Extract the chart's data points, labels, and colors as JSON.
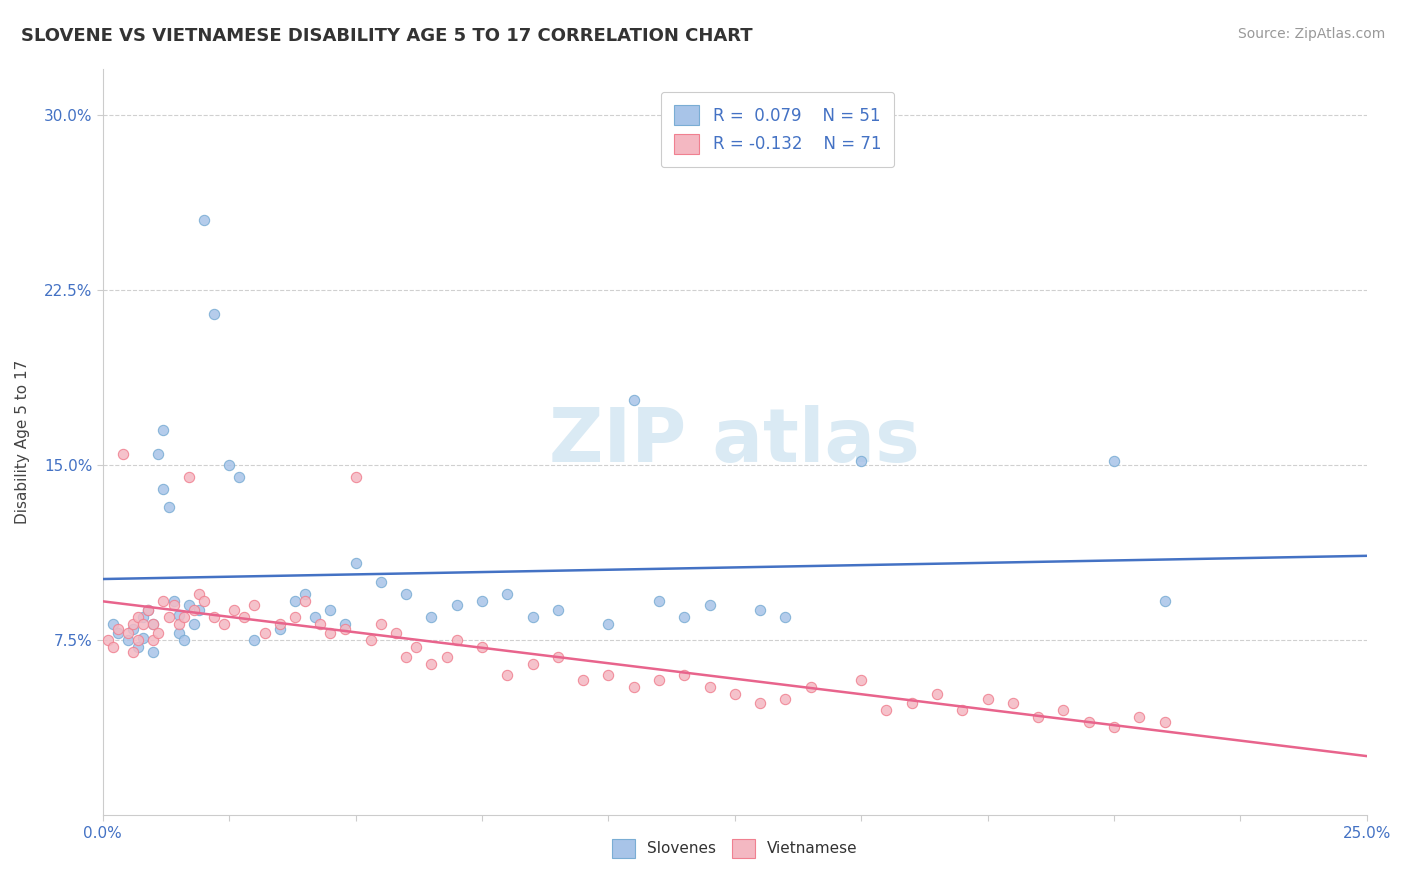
{
  "title": "SLOVENE VS VIETNAMESE DISABILITY AGE 5 TO 17 CORRELATION CHART",
  "source_text": "Source: ZipAtlas.com",
  "ylabel": "Disability Age 5 to 17",
  "xlim": [
    0.0,
    0.25
  ],
  "ylim": [
    0.0,
    0.32
  ],
  "ytick_positions": [
    0.075,
    0.15,
    0.225,
    0.3
  ],
  "yticklabels": [
    "7.5%",
    "15.0%",
    "22.5%",
    "30.0%"
  ],
  "slovene_color": "#7aadd4",
  "vietnamese_color": "#f08090",
  "slovene_scatter_color": "#a8c4e8",
  "vietnamese_scatter_color": "#f4b8c2",
  "line_slovene_color": "#4472c4",
  "line_vietnamese_color": "#e8648c",
  "background_color": "#ffffff",
  "grid_color": "#d0d0d0",
  "watermark_color": "#daeaf4",
  "slovene_x": [
    0.002,
    0.003,
    0.005,
    0.006,
    0.007,
    0.008,
    0.008,
    0.009,
    0.01,
    0.01,
    0.011,
    0.012,
    0.012,
    0.013,
    0.014,
    0.015,
    0.015,
    0.016,
    0.017,
    0.018,
    0.019,
    0.02,
    0.022,
    0.025,
    0.027,
    0.03,
    0.035,
    0.038,
    0.04,
    0.042,
    0.045,
    0.048,
    0.05,
    0.055,
    0.06,
    0.065,
    0.07,
    0.075,
    0.08,
    0.085,
    0.09,
    0.1,
    0.105,
    0.11,
    0.115,
    0.12,
    0.13,
    0.135,
    0.15,
    0.2,
    0.21
  ],
  "slovene_y": [
    0.082,
    0.078,
    0.075,
    0.08,
    0.072,
    0.085,
    0.076,
    0.088,
    0.07,
    0.082,
    0.155,
    0.165,
    0.14,
    0.132,
    0.092,
    0.086,
    0.078,
    0.075,
    0.09,
    0.082,
    0.088,
    0.255,
    0.215,
    0.15,
    0.145,
    0.075,
    0.08,
    0.092,
    0.095,
    0.085,
    0.088,
    0.082,
    0.108,
    0.1,
    0.095,
    0.085,
    0.09,
    0.092,
    0.095,
    0.085,
    0.088,
    0.082,
    0.178,
    0.092,
    0.085,
    0.09,
    0.088,
    0.085,
    0.152,
    0.152,
    0.092
  ],
  "vietnamese_x": [
    0.001,
    0.002,
    0.003,
    0.004,
    0.005,
    0.006,
    0.006,
    0.007,
    0.007,
    0.008,
    0.009,
    0.01,
    0.01,
    0.011,
    0.012,
    0.013,
    0.014,
    0.015,
    0.016,
    0.017,
    0.018,
    0.019,
    0.02,
    0.022,
    0.024,
    0.026,
    0.028,
    0.03,
    0.032,
    0.035,
    0.038,
    0.04,
    0.043,
    0.045,
    0.048,
    0.05,
    0.053,
    0.055,
    0.058,
    0.06,
    0.062,
    0.065,
    0.068,
    0.07,
    0.075,
    0.08,
    0.085,
    0.09,
    0.095,
    0.1,
    0.105,
    0.11,
    0.115,
    0.12,
    0.125,
    0.13,
    0.135,
    0.14,
    0.15,
    0.155,
    0.16,
    0.165,
    0.17,
    0.175,
    0.18,
    0.185,
    0.19,
    0.195,
    0.2,
    0.205,
    0.21
  ],
  "vietnamese_y": [
    0.075,
    0.072,
    0.08,
    0.155,
    0.078,
    0.082,
    0.07,
    0.085,
    0.075,
    0.082,
    0.088,
    0.075,
    0.082,
    0.078,
    0.092,
    0.085,
    0.09,
    0.082,
    0.085,
    0.145,
    0.088,
    0.095,
    0.092,
    0.085,
    0.082,
    0.088,
    0.085,
    0.09,
    0.078,
    0.082,
    0.085,
    0.092,
    0.082,
    0.078,
    0.08,
    0.145,
    0.075,
    0.082,
    0.078,
    0.068,
    0.072,
    0.065,
    0.068,
    0.075,
    0.072,
    0.06,
    0.065,
    0.068,
    0.058,
    0.06,
    0.055,
    0.058,
    0.06,
    0.055,
    0.052,
    0.048,
    0.05,
    0.055,
    0.058,
    0.045,
    0.048,
    0.052,
    0.045,
    0.05,
    0.048,
    0.042,
    0.045,
    0.04,
    0.038,
    0.042,
    0.04
  ]
}
